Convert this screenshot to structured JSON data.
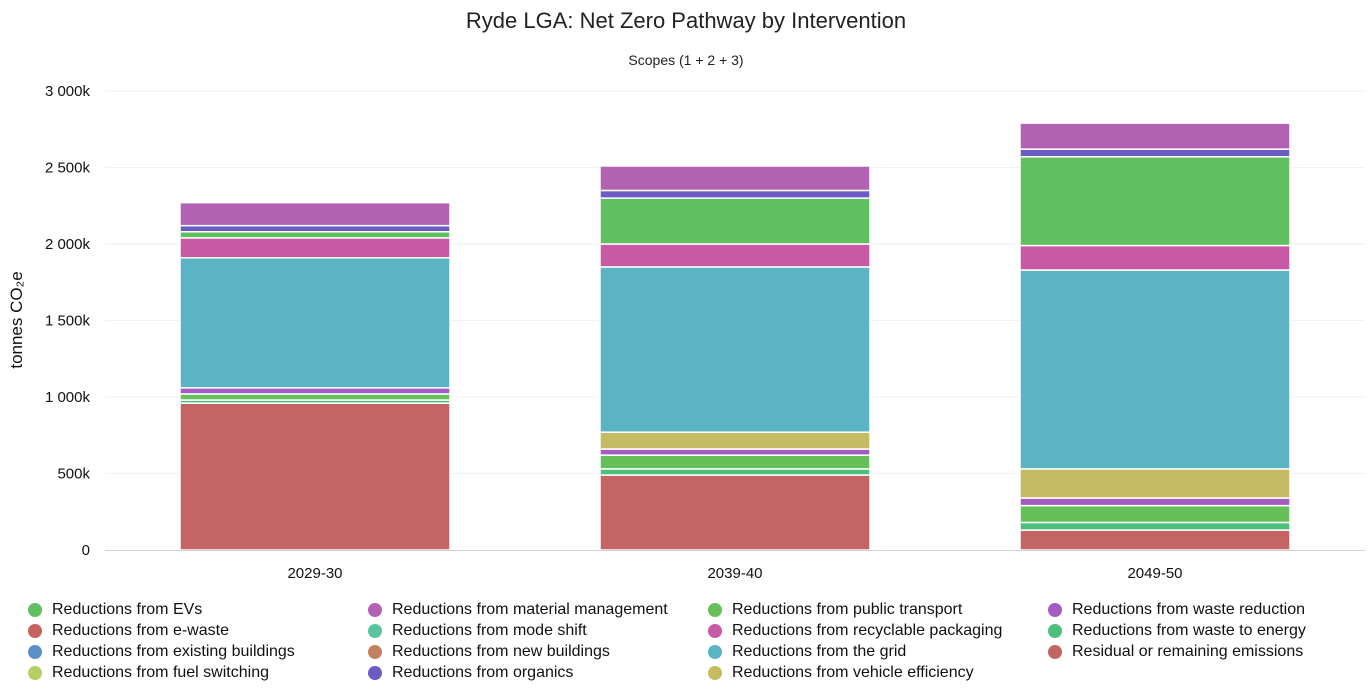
{
  "colors": {
    "axis": "#cfd3d8",
    "gridline": "#f1f2f4",
    "text": "#111111"
  },
  "chart_data": {
    "type": "bar",
    "stacked": true,
    "title": "Ryde LGA: Net Zero Pathway by Intervention",
    "subtitle": "Scopes (1 + 2 + 3)",
    "xlabel": "",
    "ylabel": "tonnes CO₂e",
    "ylim": [
      0,
      3000000
    ],
    "yticks": [
      0,
      500000,
      1000000,
      1500000,
      2000000,
      2500000,
      3000000
    ],
    "ytick_labels": [
      "0",
      "500k",
      "1 000k",
      "1 500k",
      "2 000k",
      "2 500k",
      "3 000k"
    ],
    "grid": true,
    "legend_position": "bottom",
    "categories": [
      "2029-30",
      "2039-40",
      "2049-50"
    ],
    "stack_order": [
      "Residual or remaining emissions",
      "Reductions from waste to energy",
      "Reductions from public transport",
      "Reductions from waste reduction",
      "Reductions from vehicle efficiency",
      "Reductions from the grid",
      "Reductions from recyclable packaging",
      "Reductions from EVs",
      "Reductions from organics",
      "Reductions from material management",
      "Reductions from fuel switching",
      "Reductions from e-waste",
      "Reductions from existing buildings",
      "Reductions from mode shift",
      "Reductions from new buildings"
    ],
    "series": [
      {
        "name": "Reductions from EVs",
        "color": "#60c060",
        "values": [
          40000,
          300000,
          580000
        ]
      },
      {
        "name": "Reductions from e-waste",
        "color": "#c86060",
        "values": [
          0,
          0,
          0
        ]
      },
      {
        "name": "Reductions from existing buildings",
        "color": "#5b8fc8",
        "values": [
          0,
          0,
          0
        ]
      },
      {
        "name": "Reductions from fuel switching",
        "color": "#b5cf62",
        "values": [
          0,
          0,
          0
        ]
      },
      {
        "name": "Reductions from material management",
        "color": "#b361b3",
        "values": [
          150000,
          160000,
          170000
        ]
      },
      {
        "name": "Reductions from mode shift",
        "color": "#5ac4a0",
        "values": [
          0,
          0,
          0
        ]
      },
      {
        "name": "Reductions from new buildings",
        "color": "#c48060",
        "values": [
          0,
          0,
          0
        ]
      },
      {
        "name": "Reductions from organics",
        "color": "#6a5cc4",
        "values": [
          40000,
          50000,
          50000
        ]
      },
      {
        "name": "Reductions from public transport",
        "color": "#66c05a",
        "values": [
          40000,
          90000,
          110000
        ]
      },
      {
        "name": "Reductions from recyclable packaging",
        "color": "#c85aa5",
        "values": [
          130000,
          150000,
          160000
        ]
      },
      {
        "name": "Reductions from the grid",
        "color": "#5ab4c4",
        "values": [
          850000,
          1080000,
          1300000
        ]
      },
      {
        "name": "Reductions from vehicle efficiency",
        "color": "#c4bb62",
        "values": [
          0,
          110000,
          190000
        ]
      },
      {
        "name": "Reductions from waste reduction",
        "color": "#a35cc2",
        "values": [
          40000,
          40000,
          50000
        ]
      },
      {
        "name": "Reductions from waste to energy",
        "color": "#4dbf7c",
        "values": [
          20000,
          40000,
          50000
        ]
      },
      {
        "name": "Residual or remaining emissions",
        "color": "#c46464",
        "values": [
          960000,
          490000,
          130000
        ]
      }
    ]
  }
}
